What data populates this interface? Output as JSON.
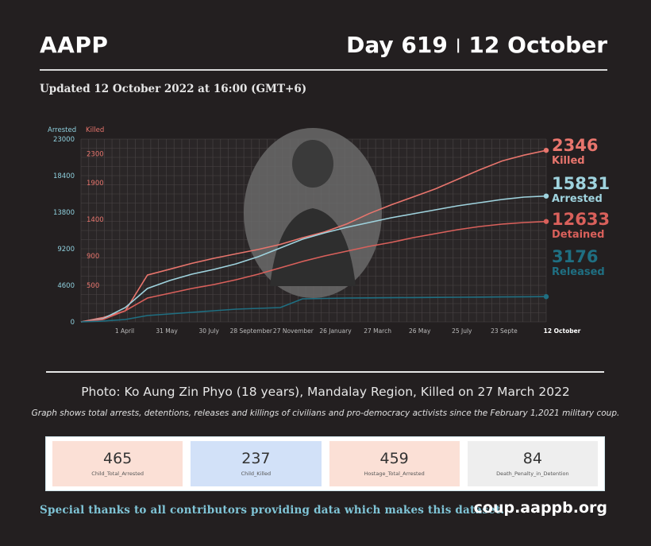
{
  "header": {
    "org": "AAPP",
    "day": "Day 619",
    "separator": "|",
    "date": "12 October",
    "updated": "Updated 12 October 2022 at 16:00 (GMT+6)"
  },
  "chart_data": {
    "type": "line",
    "left_axis_title": "Arrested",
    "right_axis_title": "Killed",
    "left_ticks": [
      0,
      4600,
      9200,
      13800,
      18400,
      23000
    ],
    "right_ticks": [
      500,
      900,
      1400,
      1900,
      2300
    ],
    "ylim_left": [
      0,
      23000
    ],
    "ylim_right": [
      0,
      2500
    ],
    "x_ticks": [
      "1 April",
      "31 May",
      "30 July",
      "28 September",
      "27 November",
      "26 January",
      "27 March",
      "26 May",
      "25 July",
      "23 Septe",
      "12 October"
    ],
    "grid": true,
    "series": [
      {
        "name": "Killed",
        "axis": "right",
        "color": "#e8756d",
        "final_value": "2346",
        "values": [
          0,
          60,
          150,
          640,
          720,
          800,
          870,
          930,
          990,
          1060,
          1150,
          1230,
          1340,
          1480,
          1600,
          1710,
          1820,
          1950,
          2080,
          2200,
          2280,
          2346
        ]
      },
      {
        "name": "Arrested",
        "axis": "left",
        "color": "#9fd3de",
        "final_value": "15831",
        "values": [
          0,
          400,
          1800,
          4200,
          5200,
          6000,
          6600,
          7300,
          8200,
          9300,
          10400,
          11200,
          11900,
          12500,
          13100,
          13600,
          14100,
          14600,
          15000,
          15400,
          15700,
          15831
        ]
      },
      {
        "name": "Detained",
        "axis": "left",
        "color": "#d9605b",
        "final_value": "12633",
        "values": [
          0,
          300,
          1400,
          3000,
          3600,
          4200,
          4700,
          5300,
          6000,
          6800,
          7600,
          8300,
          8900,
          9500,
          10000,
          10600,
          11100,
          11600,
          12000,
          12300,
          12500,
          12633
        ]
      },
      {
        "name": "Released",
        "axis": "left",
        "color": "#1f6f82",
        "final_value": "3176",
        "values": [
          0,
          100,
          300,
          800,
          1000,
          1200,
          1400,
          1600,
          1700,
          1800,
          2900,
          2950,
          3000,
          3020,
          3040,
          3060,
          3080,
          3100,
          3120,
          3140,
          3160,
          3176
        ]
      }
    ],
    "right_labels": [
      {
        "value": "2346",
        "name": "Killed",
        "color": "#e8756d"
      },
      {
        "value": "15831",
        "name": "Arrested",
        "color": "#9fd3de"
      },
      {
        "value": "12633",
        "name": "Detained",
        "color": "#d9605b"
      },
      {
        "value": "3176",
        "name": "Released",
        "color": "#1f6f82"
      }
    ]
  },
  "photo_credit": "Photo: Ko Aung Zin Phyo (18 years), Mandalay Region, Killed  on 27 March 2022",
  "graph_note": "Graph shows total arrests, detentions, releases and killings of civilians and pro-democracy activists since the February 1,2021 military coup.",
  "stats": [
    {
      "value": "465",
      "label": "Child_Total_Arrested",
      "bg": "#fbe0d6"
    },
    {
      "value": "237",
      "label": "Child_Killed",
      "bg": "#d2e1f8"
    },
    {
      "value": "459",
      "label": "Hostage_Total_Arrested",
      "bg": "#fbe0d6"
    },
    {
      "value": "84",
      "label": "Death_Penalty_in_Detention",
      "bg": "#eeeeee"
    }
  ],
  "footer": {
    "thanks": "Special thanks to all contributors providing data which makes this dataset.",
    "site": "coup.aappb.org"
  }
}
